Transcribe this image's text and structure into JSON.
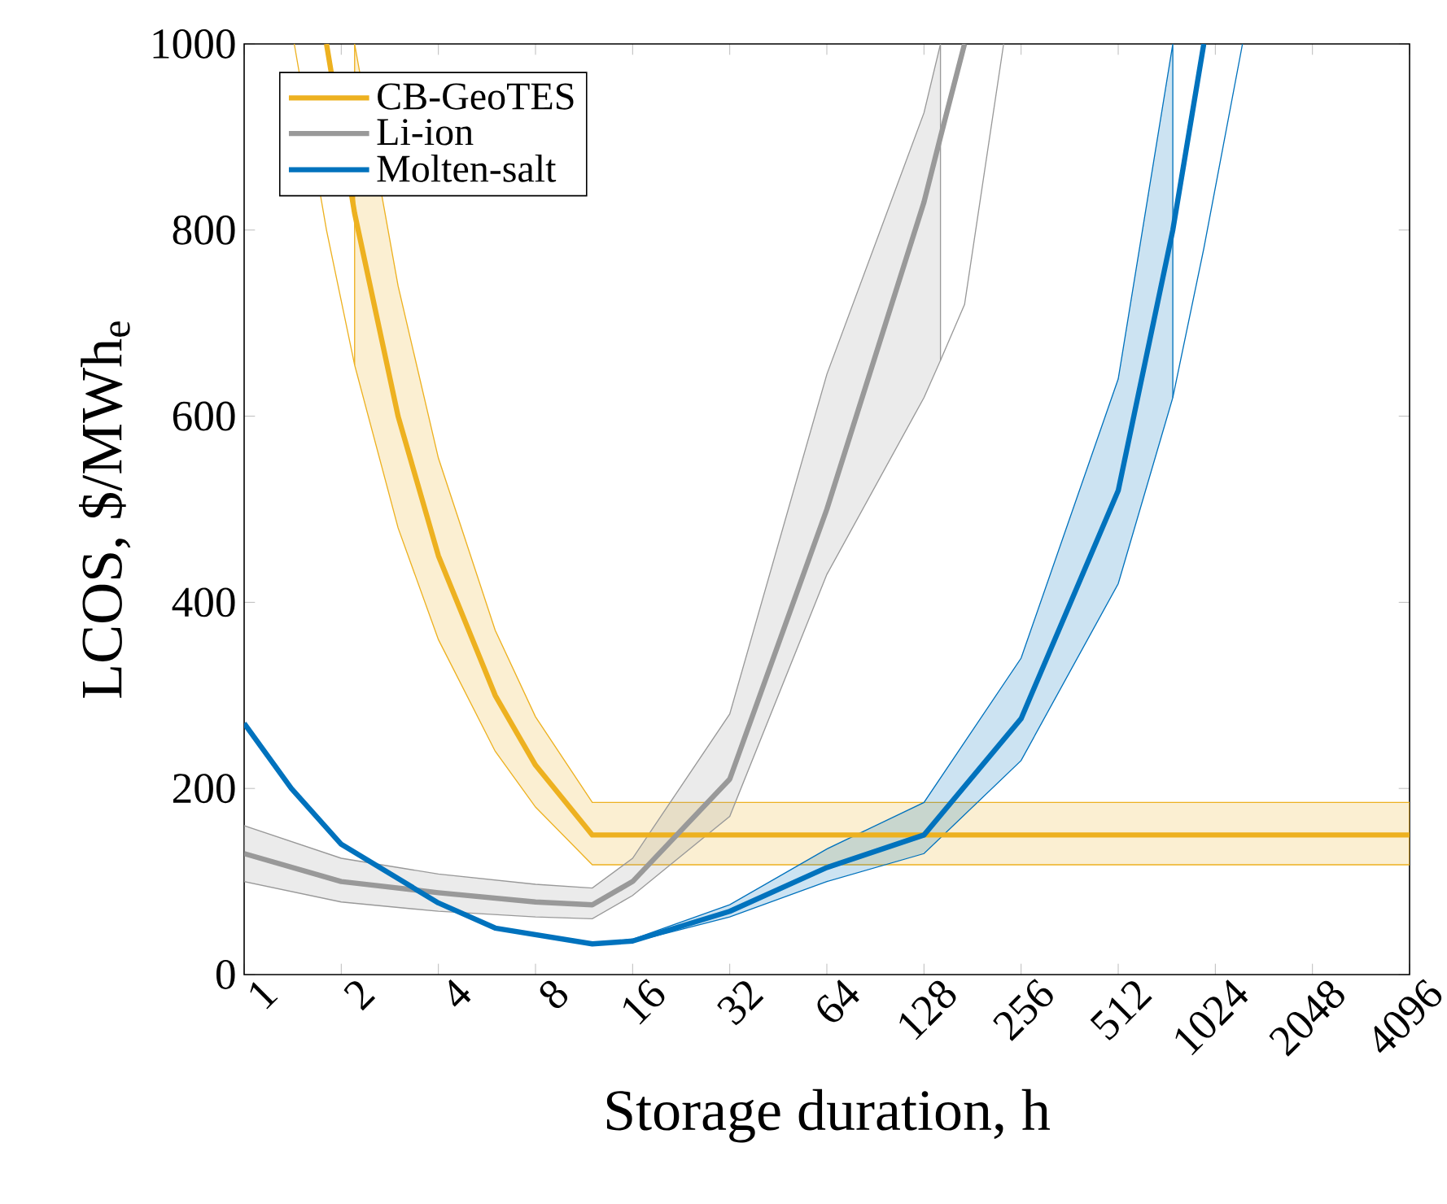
{
  "chart_data": {
    "type": "line",
    "xlabel": "Storage duration, h",
    "ylabel": "LCOS, $/MWh$_{e}$",
    "log": "x",
    "xlim": [
      1,
      4096
    ],
    "xticks": [
      1,
      2,
      4,
      8,
      16,
      32,
      64,
      128,
      256,
      512,
      1024,
      2048,
      4096
    ],
    "ylim": [
      0,
      1000
    ],
    "yticks": [
      0,
      200,
      400,
      600,
      800,
      1000
    ],
    "grid": false,
    "legend": "top left",
    "marker": "none",
    "line_style": "solid",
    "series": [
      {
        "name": "CB-GeoTES",
        "color": "#edb120",
        "x": [
          1.8,
          2.2,
          3,
          4,
          6,
          8,
          12,
          4096
        ],
        "values": [
          1000,
          818,
          600,
          450,
          300,
          225,
          150,
          150
        ],
        "lower": [
          null,
          655,
          480,
          360,
          240,
          180,
          118,
          118
        ],
        "upper": [
          null,
          1000,
          740,
          555,
          370,
          277,
          185,
          185
        ]
      },
      {
        "name": "Li-ion",
        "color": "#999999",
        "x": [
          1,
          2,
          4,
          8,
          12,
          16,
          32,
          64,
          128,
          144,
          171
        ],
        "values": [
          130,
          100,
          88,
          78,
          75,
          100,
          210,
          500,
          830,
          900,
          1000
        ],
        "lower": [
          100,
          78,
          68,
          62,
          60,
          85,
          170,
          430,
          620,
          660,
          null
        ],
        "upper": [
          160,
          125,
          108,
          97,
          93,
          125,
          280,
          645,
          926,
          1000,
          null
        ]
      },
      {
        "name": "Molten-salt",
        "color": "#0072bd",
        "x": [
          1,
          1.4,
          2,
          4,
          6,
          12,
          16,
          32,
          64,
          128,
          256,
          512,
          756,
          943
        ],
        "values": [
          270,
          200,
          140,
          77,
          50,
          33,
          36,
          68,
          115,
          150,
          275,
          520,
          800,
          1000
        ],
        "lower": [
          null,
          null,
          null,
          null,
          null,
          33,
          35,
          62,
          100,
          130,
          230,
          420,
          620,
          null
        ],
        "upper": [
          null,
          null,
          null,
          null,
          null,
          33,
          38,
          75,
          135,
          185,
          340,
          640,
          1000,
          null
        ]
      },
      {
        "color": "#edb120",
        "x": [
          1.43,
          1.8,
          2.2
        ],
        "values": [
          1000,
          800,
          655
        ]
      },
      {
        "color": "#999999",
        "x": [
          144,
          171,
          226
        ],
        "values": [
          660,
          720,
          1000
        ]
      },
      {
        "color": "#0072bd",
        "x": [
          756,
          943,
          1243
        ],
        "values": [
          620,
          780,
          1000
        ]
      }
    ]
  }
}
